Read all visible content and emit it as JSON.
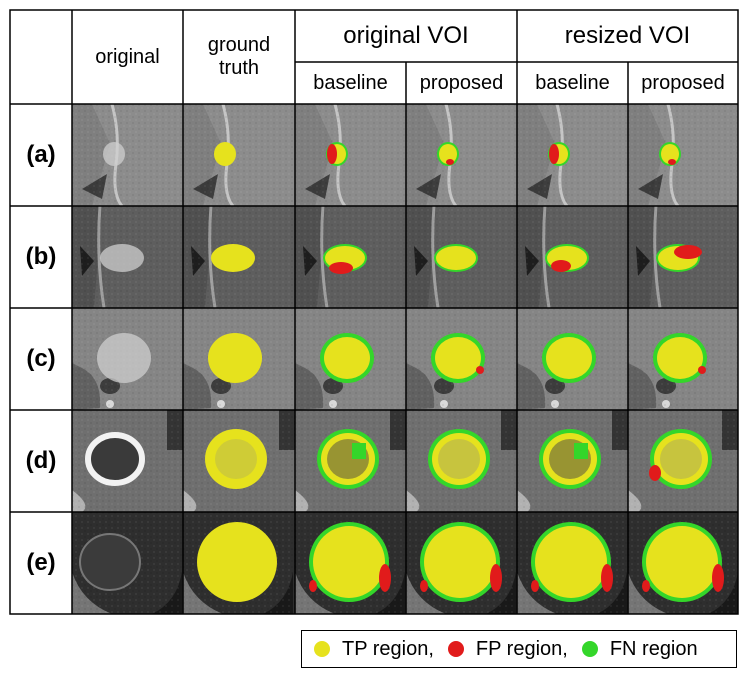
{
  "headers": {
    "original": "original",
    "ground_truth": "ground\ntruth",
    "original_voi": "original VOI",
    "resized_voi": "resized VOI",
    "baseline": "baseline",
    "proposed": "proposed"
  },
  "rows": [
    {
      "label": "(a)"
    },
    {
      "label": "(b)"
    },
    {
      "label": "(c)"
    },
    {
      "label": "(d)"
    },
    {
      "label": "(e)"
    }
  ],
  "legend": {
    "tp": "TP region,",
    "fp": "FP region,",
    "fn": "FN region"
  },
  "colors": {
    "tp": "#e6e21d",
    "fp": "#e11b1b",
    "fn": "#34d62a"
  }
}
